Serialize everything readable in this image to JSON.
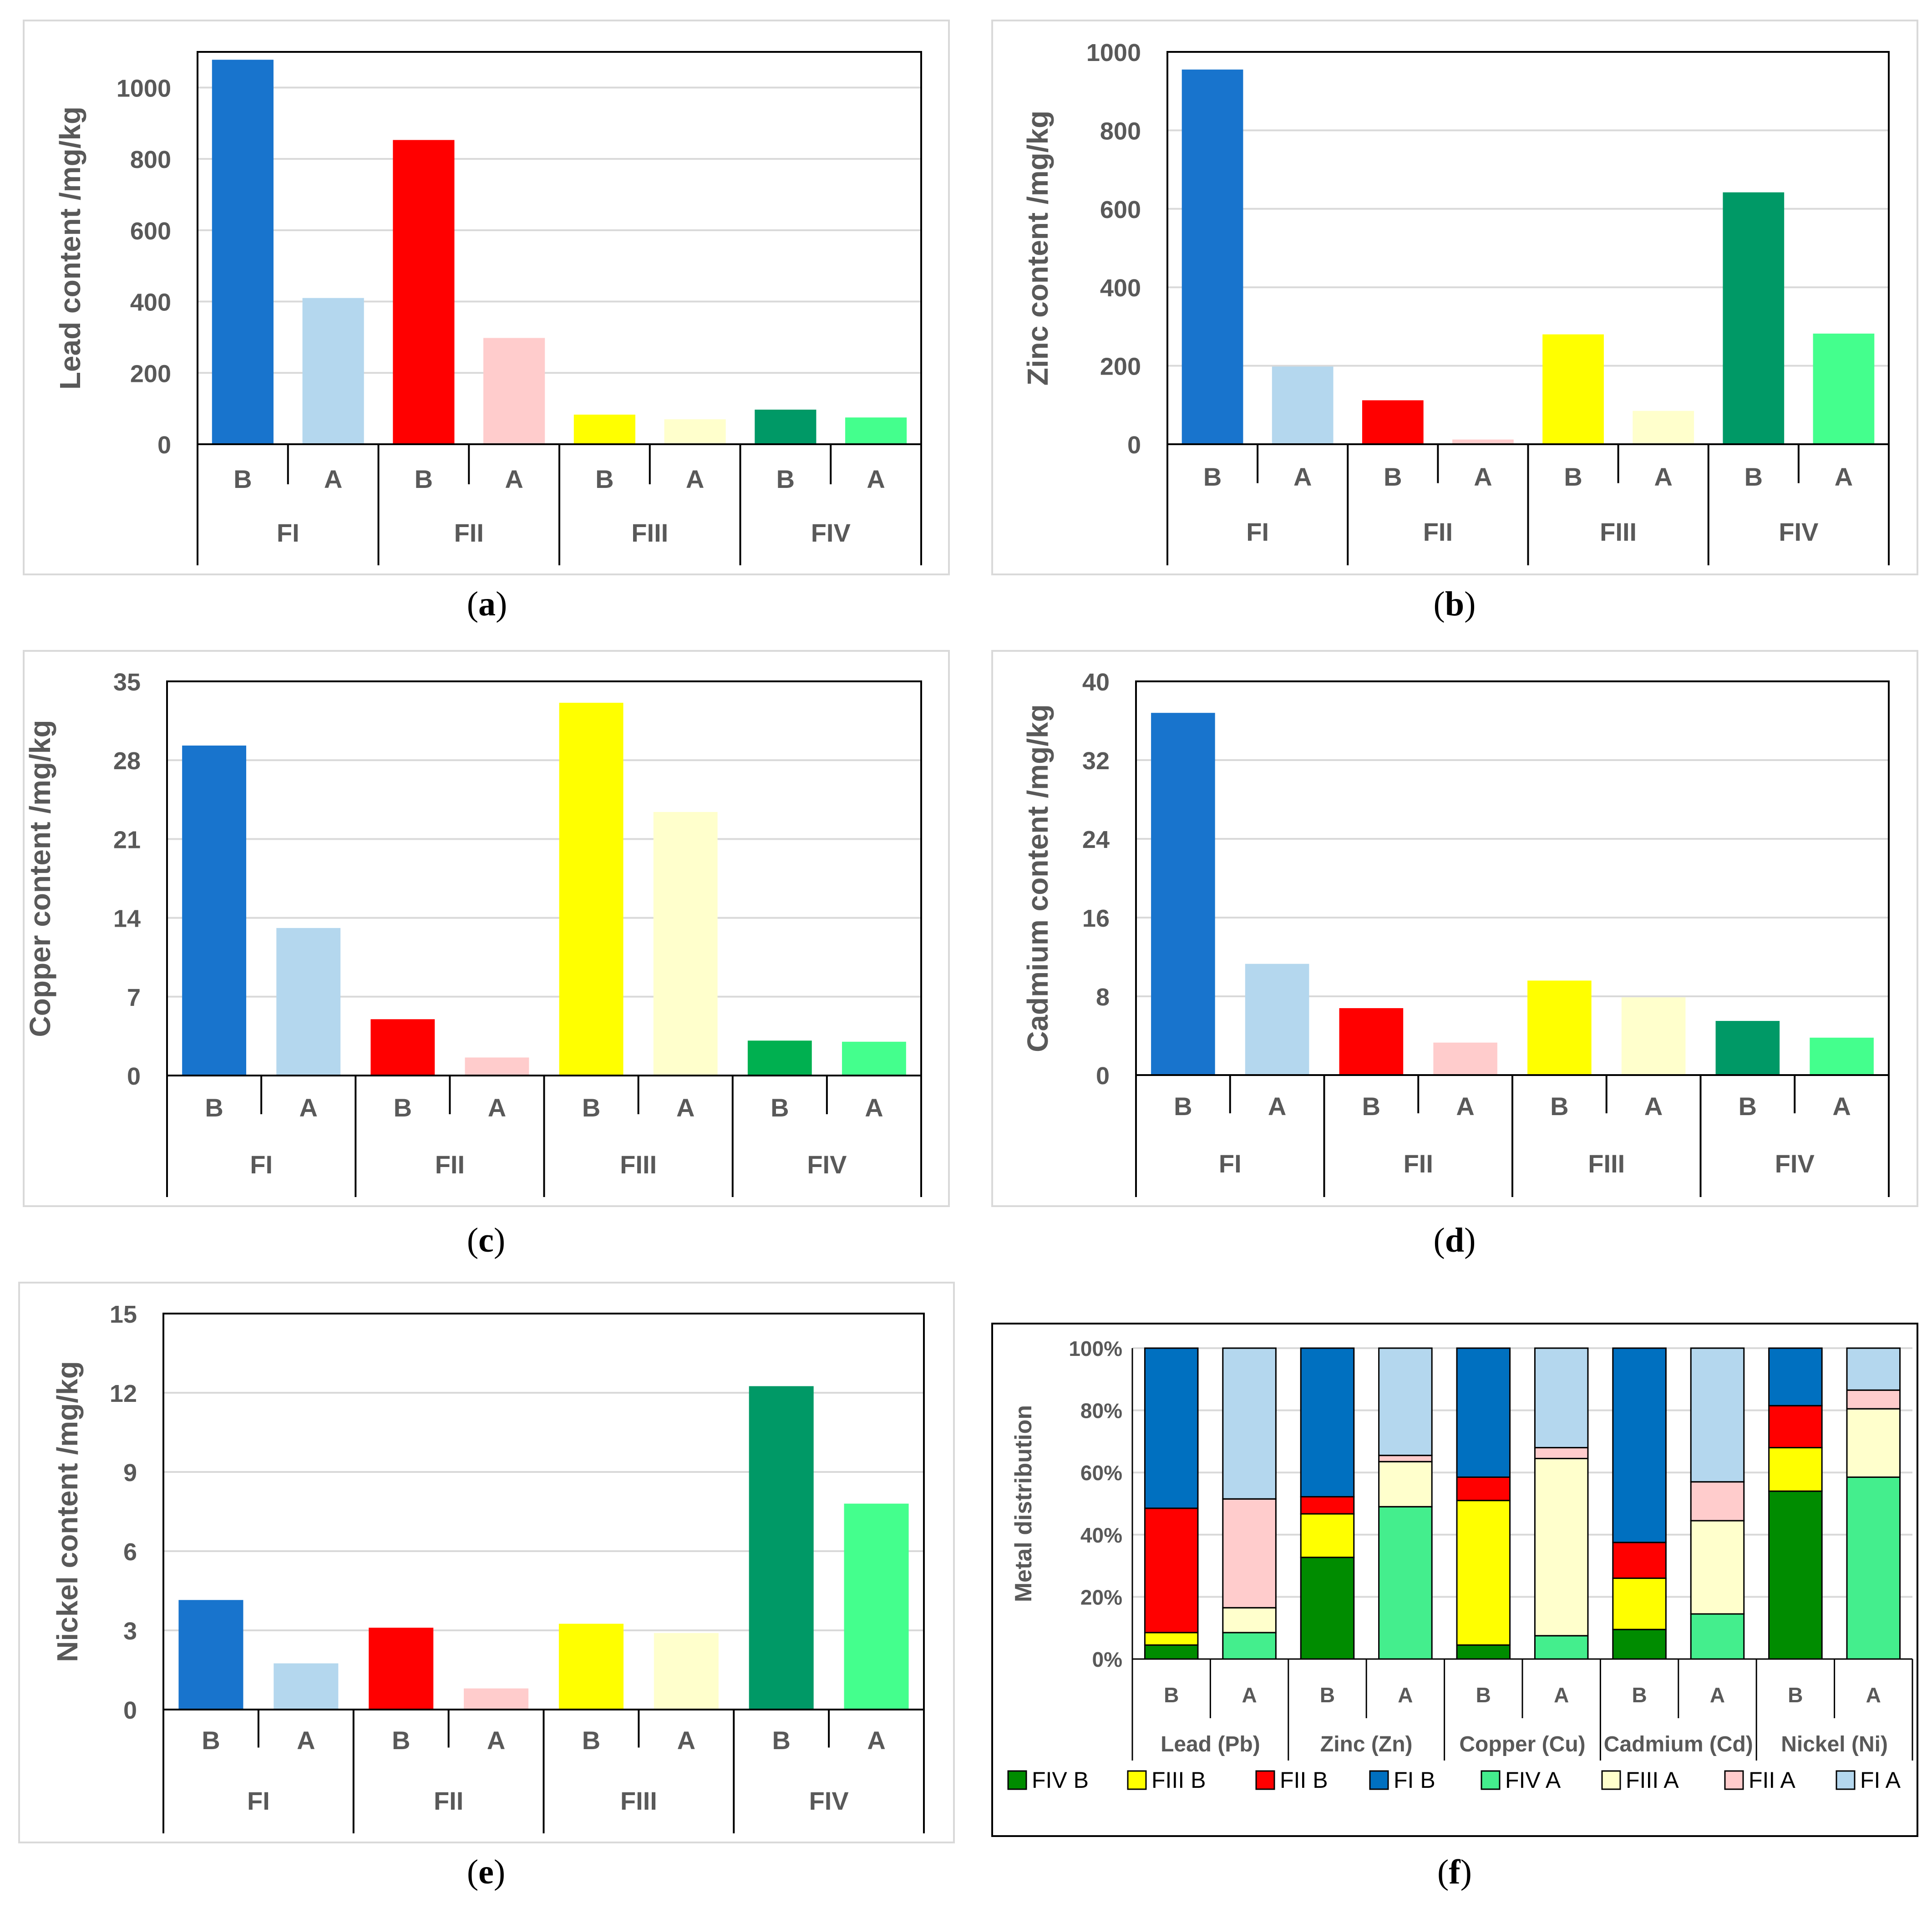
{
  "figure": {
    "panel_letters": [
      "a",
      "b",
      "c",
      "d",
      "e",
      "f"
    ]
  },
  "colors": {
    "FI_B": "#1874CD",
    "FI_A": "#B4D7EE",
    "FII_B": "#FF0000",
    "FII_A": "#FFCCCC",
    "FIII_B": "#FFFF00",
    "FIII_A": "#FFFFCC",
    "FIV_B": "#009966",
    "FIV_B_copper": "#00B050",
    "FIV_A": "#44FF8D",
    "stack_FIV_B": "#008C00",
    "stack_FIV_A": "#44EE8D",
    "stack_FI_B": "#0070C0",
    "stack_FI_A": "#B4D7EE",
    "gridline": "#D9D9D9",
    "text": "#595959"
  },
  "chart_data": [
    {
      "type": "bar",
      "panel": "a",
      "ylabel": "Lead  content /mg/kg",
      "ylim": [
        0,
        1100
      ],
      "yticks": [
        0,
        200,
        400,
        600,
        800,
        1000
      ],
      "ytick_labels": [
        "0",
        "200",
        "400",
        "600",
        "800",
        "1000"
      ],
      "groups": [
        "FI",
        "FII",
        "FIII",
        "FIV"
      ],
      "subcategories": [
        "B",
        "A"
      ],
      "values": [
        1078,
        410,
        853,
        298,
        83,
        70,
        97,
        75
      ],
      "color_keys": [
        "FI_B",
        "FI_A",
        "FII_B",
        "FII_A",
        "FIII_B",
        "FIII_A",
        "FIV_B",
        "FIV_A"
      ]
    },
    {
      "type": "bar",
      "panel": "b",
      "ylabel": "Zinc  content /mg/kg",
      "ylim": [
        0,
        1000
      ],
      "yticks": [
        0,
        200,
        400,
        600,
        800,
        1000
      ],
      "ytick_labels": [
        "0",
        "200",
        "400",
        "600",
        "800",
        "1000"
      ],
      "groups": [
        "FI",
        "FII",
        "FIII",
        "FIV"
      ],
      "subcategories": [
        "B",
        "A"
      ],
      "values": [
        955,
        198,
        112,
        12,
        280,
        85,
        642,
        282
      ],
      "color_keys": [
        "FI_B",
        "FI_A",
        "FII_B",
        "FII_A",
        "FIII_B",
        "FIII_A",
        "FIV_B",
        "FIV_A"
      ]
    },
    {
      "type": "bar",
      "panel": "c",
      "ylabel": "Copper  content /mg/kg",
      "ylim": [
        0,
        35
      ],
      "yticks": [
        0,
        7,
        14,
        21,
        28,
        35
      ],
      "ytick_labels": [
        "0",
        "7",
        "14",
        "21",
        "28",
        "35"
      ],
      "groups": [
        "FI",
        "FII",
        "FIII",
        "FIV"
      ],
      "subcategories": [
        "B",
        "A"
      ],
      "values": [
        29.3,
        13.1,
        5.0,
        1.6,
        33.1,
        23.4,
        3.1,
        3.0
      ],
      "color_keys": [
        "FI_B",
        "FI_A",
        "FII_B",
        "FII_A",
        "FIII_B",
        "FIII_A",
        "FIV_B_copper",
        "FIV_A"
      ]
    },
    {
      "type": "bar",
      "panel": "d",
      "ylabel": "Cadmium  content /mg/kg",
      "ylim": [
        0,
        40
      ],
      "yticks": [
        0,
        8,
        16,
        24,
        32,
        40
      ],
      "ytick_labels": [
        "0",
        "8",
        "16",
        "24",
        "32",
        "40"
      ],
      "groups": [
        "FI",
        "FII",
        "FIII",
        "FIV"
      ],
      "subcategories": [
        "B",
        "A"
      ],
      "values": [
        36.8,
        11.3,
        6.8,
        3.3,
        9.6,
        7.9,
        5.5,
        3.8
      ],
      "color_keys": [
        "FI_B",
        "FI_A",
        "FII_B",
        "FII_A",
        "FIII_B",
        "FIII_A",
        "FIV_B",
        "FIV_A"
      ]
    },
    {
      "type": "bar",
      "panel": "e",
      "ylabel": "Nickel  content /mg/kg",
      "ylim": [
        0,
        15
      ],
      "yticks": [
        0,
        3,
        6,
        9,
        12,
        15
      ],
      "ytick_labels": [
        "0",
        "3",
        "6",
        "9",
        "12",
        "15"
      ],
      "groups": [
        "FI",
        "FII",
        "FIII",
        "FIV"
      ],
      "subcategories": [
        "B",
        "A"
      ],
      "values": [
        4.15,
        1.75,
        3.1,
        0.8,
        3.25,
        2.9,
        12.25,
        7.8
      ],
      "color_keys": [
        "FI_B",
        "FI_A",
        "FII_B",
        "FII_A",
        "FIII_B",
        "FIII_A",
        "FIV_B",
        "FIV_A"
      ]
    },
    {
      "type": "stacked_bar",
      "panel": "f",
      "ylabel": "Metal distribution",
      "ylim": [
        0,
        100
      ],
      "yticks": [
        0,
        20,
        40,
        60,
        80,
        100
      ],
      "ytick_labels": [
        "0%",
        "20%",
        "40%",
        "60%",
        "80%",
        "100%"
      ],
      "groups": [
        "Lead (Pb)",
        "Zinc (Zn)",
        "Copper (Cu)",
        "Cadmium (Cd)",
        "Nickel (Ni)"
      ],
      "subcategories": [
        "B",
        "A"
      ],
      "bars": [
        {
          "group": "Lead (Pb)",
          "sample": "B",
          "segments": [
            4.5,
            4,
            40,
            51.5
          ]
        },
        {
          "group": "Lead (Pb)",
          "sample": "A",
          "segments": [
            8.5,
            8,
            35,
            48.5
          ]
        },
        {
          "group": "Zinc (Zn)",
          "sample": "B",
          "segments": [
            32.7,
            14,
            5.5,
            47.8
          ]
        },
        {
          "group": "Zinc (Zn)",
          "sample": "A",
          "segments": [
            49,
            14.5,
            2,
            34.5
          ]
        },
        {
          "group": "Copper (Cu)",
          "sample": "B",
          "segments": [
            4.5,
            46.5,
            7.5,
            41.5
          ]
        },
        {
          "group": "Copper (Cu)",
          "sample": "A",
          "segments": [
            7.5,
            57,
            3.5,
            32
          ]
        },
        {
          "group": "Cadmium (Cd)",
          "sample": "B",
          "segments": [
            9.5,
            16.5,
            11.5,
            62.5
          ]
        },
        {
          "group": "Cadmium (Cd)",
          "sample": "A",
          "segments": [
            14.5,
            30,
            12.5,
            43
          ]
        },
        {
          "group": "Nickel (Ni)",
          "sample": "B",
          "segments": [
            54,
            14,
            13.5,
            18.5
          ]
        },
        {
          "group": "Nickel (Ni)",
          "sample": "A",
          "segments": [
            58.5,
            22,
            6,
            13.5
          ]
        }
      ],
      "segment_color_keys_B": [
        "stack_FIV_B",
        "FIII_B",
        "FII_B",
        "stack_FI_B"
      ],
      "segment_color_keys_A": [
        "stack_FIV_A",
        "FIII_A",
        "FII_A",
        "stack_FI_A"
      ],
      "legend": [
        {
          "label": "FIV B",
          "color_key": "stack_FIV_B"
        },
        {
          "label": "FIII B",
          "color_key": "FIII_B"
        },
        {
          "label": "FII B",
          "color_key": "FII_B"
        },
        {
          "label": "FI B",
          "color_key": "stack_FI_B"
        },
        {
          "label": "FIV A",
          "color_key": "stack_FIV_A"
        },
        {
          "label": "FIII A",
          "color_key": "FIII_A"
        },
        {
          "label": "FII A",
          "color_key": "FII_A"
        },
        {
          "label": "FI A",
          "color_key": "stack_FI_A"
        }
      ],
      "legend_position": "bottom"
    }
  ]
}
